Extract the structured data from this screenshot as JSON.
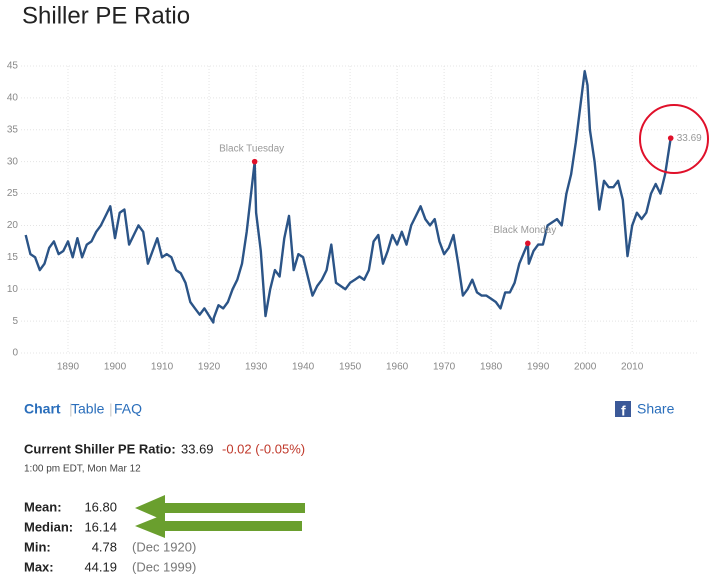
{
  "chart_data": {
    "type": "line",
    "title": "Shiller PE Ratio",
    "x": [
      1881,
      1882,
      1883,
      1884,
      1885,
      1886,
      1887,
      1888,
      1889,
      1890,
      1891,
      1892,
      1893,
      1894,
      1895,
      1896,
      1897,
      1898,
      1899,
      1900,
      1901,
      1902,
      1903,
      1904,
      1905,
      1906,
      1907,
      1908,
      1909,
      1910,
      1911,
      1912,
      1913,
      1914,
      1915,
      1916,
      1917,
      1918,
      1919,
      1920.9,
      1921,
      1922,
      1923,
      1924,
      1925,
      1926,
      1927,
      1928,
      1929.7,
      1930,
      1931,
      1932,
      1933,
      1934,
      1935,
      1936,
      1937,
      1938,
      1939,
      1940,
      1941,
      1942,
      1943,
      1944,
      1945,
      1946,
      1947,
      1948,
      1949,
      1950,
      1951,
      1952,
      1953,
      1954,
      1955,
      1956,
      1957,
      1958,
      1959,
      1960,
      1961,
      1962,
      1963,
      1964,
      1965,
      1966,
      1967,
      1968,
      1969,
      1970,
      1971,
      1972,
      1973,
      1974,
      1975,
      1976,
      1977,
      1978,
      1979,
      1980,
      1981,
      1982,
      1983,
      1984,
      1985,
      1986,
      1987.8,
      1988,
      1989,
      1990,
      1991,
      1992,
      1993,
      1994,
      1995,
      1996,
      1997,
      1998,
      1999.9,
      2000.5,
      2001,
      2002,
      2003,
      2004,
      2005,
      2006,
      2007,
      2008,
      2009,
      2010,
      2011,
      2012,
      2013,
      2014,
      2015,
      2016,
      2017,
      2018.2
    ],
    "series": [
      {
        "color": "#2b5487",
        "values": [
          18.5,
          15.5,
          15,
          13,
          14,
          16.5,
          17.5,
          15.5,
          16,
          17.5,
          15,
          18,
          15,
          17,
          17.5,
          19,
          20,
          21.5,
          23,
          18,
          22,
          22.5,
          17,
          18.5,
          20,
          19,
          14,
          16,
          18,
          15,
          15.5,
          15,
          13,
          12.5,
          11,
          8,
          7,
          6,
          7,
          4.78,
          5.5,
          7.5,
          7,
          8,
          10,
          11.5,
          14,
          19,
          30,
          22,
          16,
          5.8,
          10,
          13,
          12,
          18,
          21.5,
          13,
          15.5,
          15,
          12,
          9,
          10.5,
          11.5,
          13,
          17,
          11,
          10.5,
          10,
          11,
          11.5,
          12,
          11.5,
          13,
          17.5,
          18.5,
          14,
          16,
          18.5,
          17,
          19,
          17,
          20,
          21.5,
          23,
          21,
          20,
          21,
          17.5,
          15.5,
          16.5,
          18.5,
          14,
          9,
          10,
          11.5,
          9.5,
          9,
          9,
          8.5,
          8,
          7,
          9.5,
          9.5,
          11,
          14,
          17.2,
          14,
          16,
          17,
          17,
          20,
          20.5,
          21,
          20,
          25,
          28,
          33,
          44.19,
          42,
          35,
          30,
          22.5,
          27,
          26,
          26,
          27,
          24,
          15.2,
          20,
          22,
          21,
          22,
          25,
          26.5,
          25,
          28,
          33.69
        ]
      }
    ],
    "annotations": [
      {
        "label": "Black Tuesday",
        "x": 1929.7,
        "y": 30
      },
      {
        "label": "Black Monday",
        "x": 1987.8,
        "y": 17.2
      },
      {
        "label": "33.69",
        "x": 2018.2,
        "y": 33.69
      }
    ],
    "annotation_color": "#e0102a",
    "xlim": [
      1880,
      2024
    ],
    "xticks": [
      1890,
      1900,
      1910,
      1920,
      1930,
      1940,
      1950,
      1960,
      1970,
      1980,
      1990,
      2000,
      2010
    ],
    "ylim": [
      0,
      45
    ],
    "yticks": [
      0,
      5,
      10,
      15,
      20,
      25,
      30,
      35,
      40,
      45
    ],
    "grid": true
  },
  "tabs": [
    "Chart",
    "Table",
    "FAQ"
  ],
  "share": "Share",
  "current": {
    "label": "Current Shiller PE Ratio:",
    "value": "33.69",
    "change": "-0.02 (-0.05%)",
    "time": "1:00 pm EDT, Mon Mar 12"
  },
  "stats": [
    {
      "label": "Mean:",
      "value": "16.80"
    },
    {
      "label": "Median:",
      "value": "16.14"
    },
    {
      "label": "Min:",
      "value": "4.78",
      "date": "(Dec 1920)"
    },
    {
      "label": "Max:",
      "value": "44.19",
      "date": "(Dec 1999)"
    }
  ]
}
